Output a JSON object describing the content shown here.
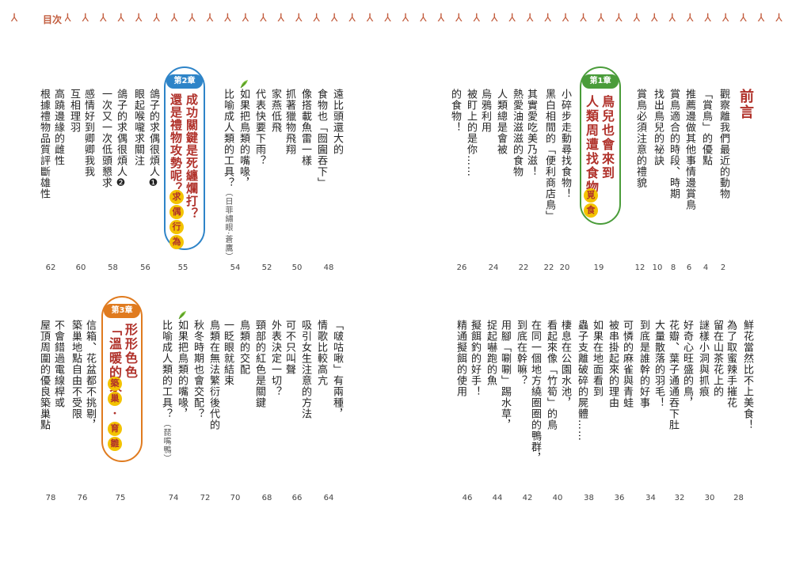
{
  "header": {
    "toc_label": "目次"
  },
  "preface": {
    "title": "前言",
    "entries": [
      {
        "text": "觀察離我們最近的動物",
        "page": "2"
      },
      {
        "text": "「賞鳥」的優點",
        "page": "4"
      },
      {
        "text": "推薦邊做其他事情邊賞鳥",
        "page": "6"
      },
      {
        "text": "賞鳥適合的時段、時期",
        "page": "8"
      },
      {
        "text": "找出鳥兒的祕訣",
        "page": "10"
      },
      {
        "text": "賞鳥必須注意的禮貌",
        "page": "12"
      }
    ]
  },
  "chapter1": {
    "badge": "第1章",
    "title_lines": [
      "鳥兒也會來到",
      "人類周遭找食物"
    ],
    "tags": [
      "覓",
      "食"
    ],
    "page": "19",
    "entries": [
      {
        "text": "小碎步走動尋找食物！",
        "page": "20"
      },
      {
        "text": "黑白相間的「便利商店鳥」",
        "page": "22"
      },
      {
        "text": "其實愛吃美乃滋！",
        "page": "22"
      },
      {
        "text": "熱愛油滋滋的食物",
        "page": "22"
      },
      {
        "text": "人類總是會被",
        "page": "24"
      },
      {
        "text": "烏鴉利用",
        "page": "24"
      },
      {
        "text": "被盯上的是你……",
        "page": "26"
      },
      {
        "text": "的食物！",
        "page": "26"
      }
    ]
  },
  "chapter2": {
    "badge": "第2章",
    "title_lines": [
      "成功關鍵是死纏爛打？",
      "還是禮物攻勢呢？"
    ],
    "tags": [
      "求",
      "偶",
      "行",
      "為"
    ],
    "page": "55",
    "entries_left": [
      {
        "text": "遠比頭還大的",
        "page": "48"
      },
      {
        "text": "食物也「囫圇吞下」",
        "page": "48"
      },
      {
        "text": "像搭載魚雷一樣",
        "page": "50"
      },
      {
        "text": "抓著獵物飛翔",
        "page": "50"
      },
      {
        "text": "家燕低飛",
        "page": "52"
      },
      {
        "text": "代表快要下雨？",
        "page": "52"
      },
      {
        "text": "如果把鳥類的嘴喙，",
        "page": "54"
      },
      {
        "text": "比喻成人類的工具？",
        "sub": "（日菲繡眼‧蒼鷹）",
        "page": "54"
      }
    ],
    "entries_right": [
      {
        "text": "鴿子的求偶很煩人❶",
        "page": "56"
      },
      {
        "text": "眼起喉嚨求關注",
        "page": "56"
      },
      {
        "text": "鴿子的求偶很煩人❷",
        "page": "58"
      },
      {
        "text": "一次又一次低頭懇求",
        "page": "58"
      },
      {
        "text": "感情好到卿卿我我",
        "page": "60"
      },
      {
        "text": "互相理羽",
        "page": "60"
      },
      {
        "text": "高蹺邊緣的雌性",
        "page": "62"
      },
      {
        "text": "根據禮物品質評斷雄性",
        "page": "62"
      }
    ]
  },
  "chapter3": {
    "badge": "第3章",
    "title_lines": [
      "形形色色",
      "「溫暖的家」"
    ],
    "tags": [
      "築",
      "巢",
      "・",
      "育",
      "雛"
    ],
    "page": "75",
    "entries_left": [
      {
        "text": "「啵咕啾」有兩種，",
        "page": "64"
      },
      {
        "text": "情歌比較高亢",
        "page": "64"
      },
      {
        "text": "吸引女生注意的方法",
        "page": "66"
      },
      {
        "text": "可不只叫聲",
        "page": "66"
      },
      {
        "text": "外表決定一切？",
        "page": "68"
      },
      {
        "text": "頸部的紅色是關鍵",
        "page": "68"
      },
      {
        "text": "鳥類的交配",
        "page": "70"
      },
      {
        "text": "一眨眼就結束",
        "page": "70"
      },
      {
        "text": "鳥類在無法繁衍後代的",
        "page": "72"
      },
      {
        "text": "秋冬時期也會交配？",
        "page": "72"
      },
      {
        "text": "如果把鳥類的嘴喙，",
        "page": "74"
      },
      {
        "text": "比喻成人類的工具？",
        "sub": "（琵嘴鴨）",
        "page": "74"
      }
    ],
    "entries_right": [
      {
        "text": "信箱、花盆都不挑剔，",
        "page": "76"
      },
      {
        "text": "築巢地點自由不受限",
        "page": "76"
      },
      {
        "text": "不會錯過電線桿或",
        "page": "78"
      },
      {
        "text": "屋頂周圍的優良築巢點",
        "page": "78"
      }
    ]
  },
  "section_bottom_right": {
    "entries": [
      {
        "text": "鮮花當然比不上美食！",
        "page": "28"
      },
      {
        "text": "為了取蜜辣手摧花",
        "page": "28"
      },
      {
        "text": "留在山茶花上的",
        "page": "30"
      },
      {
        "text": "謎樣小洞與抓痕",
        "page": "30"
      },
      {
        "text": "好奇心旺盛的鳥，",
        "page": "32"
      },
      {
        "text": "花瓣、葉子通通吞下肚",
        "page": "32"
      },
      {
        "text": "大量散落的羽毛！",
        "page": "34"
      },
      {
        "text": "到底是誰幹的好事",
        "page": "34"
      },
      {
        "text": "可憐的麻雀與青蛙",
        "page": "36"
      },
      {
        "text": "被串掛起來的理由",
        "page": "36"
      },
      {
        "text": "如果在地面看到",
        "page": "38"
      },
      {
        "text": "蟲子支離破碎的屍體……",
        "page": "38"
      },
      {
        "text": "棲息在公園水池，",
        "page": "40"
      },
      {
        "text": "看起來像「竹筍」的鳥",
        "page": "40"
      },
      {
        "text": "在同一個地方繞圈圈的鴨群，",
        "page": "42"
      },
      {
        "text": "到底在幹嘛？",
        "page": "42"
      },
      {
        "text": "用腳「唰唰」踢水草，",
        "page": "44"
      },
      {
        "text": "捉起嚇跑的魚",
        "page": "44"
      },
      {
        "text": "擬餌釣的好手！",
        "page": "46"
      },
      {
        "text": "精通擬餌的使用",
        "page": "46"
      }
    ]
  },
  "colors": {
    "border": "#c25b3c",
    "ch1": "#4a9c3a",
    "ch2": "#2e84c8",
    "ch3": "#e07b1f",
    "title_red": "#b0312a",
    "tag_yellow": "#f3c300"
  },
  "icons": {
    "border_mark": "bird-track-icon",
    "leaf": "leaf-icon"
  }
}
